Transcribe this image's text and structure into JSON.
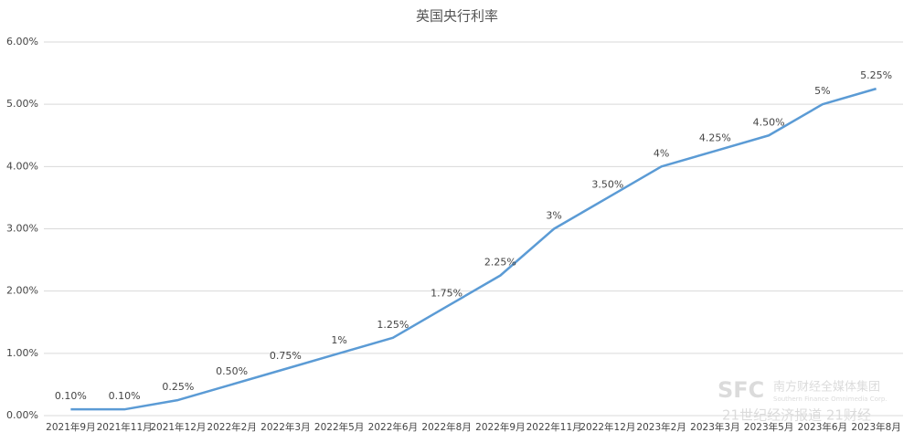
{
  "chart_data": {
    "type": "line",
    "title": "英国央行利率",
    "categories": [
      "2021年9月",
      "2021年11月",
      "2021年12月",
      "2022年2月",
      "2022年3月",
      "2022年5月",
      "2022年6月",
      "2022年8月",
      "2022年9月",
      "2022年11月",
      "2022年12月",
      "2023年2月",
      "2023年3月",
      "2023年5月",
      "2023年6月",
      "2023年8月"
    ],
    "series": [
      {
        "color": "#5b9bd5",
        "values": [
          0.1,
          0.1,
          0.25,
          0.5,
          0.75,
          1,
          1.25,
          1.75,
          2.25,
          3,
          3.5,
          4,
          4.25,
          4.5,
          5,
          5.25
        ],
        "value_labels": [
          "0.10%",
          "0.10%",
          "0.25%",
          "0.50%",
          "0.75%",
          "1%",
          "1.25%",
          "1.75%",
          "2.25%",
          "3%",
          "3.50%",
          "4%",
          "4.25%",
          "4.50%",
          "5%",
          "5.25%"
        ]
      }
    ],
    "ylim": [
      0,
      6
    ],
    "yticks": [
      {
        "value": 0,
        "label": "0.00%"
      },
      {
        "value": 1,
        "label": "1.00%"
      },
      {
        "value": 2,
        "label": "2.00%"
      },
      {
        "value": 3,
        "label": "3.00%"
      },
      {
        "value": 4,
        "label": "4.00%"
      },
      {
        "value": 5,
        "label": "5.00%"
      },
      {
        "value": 6,
        "label": "6.00%"
      }
    ],
    "grid": true,
    "watermark": [
      "SFC",
      "南方财经全媒体集团",
      "Southern Finance Omnimedia Corp.",
      "21世纪经济报道 21财经"
    ]
  }
}
